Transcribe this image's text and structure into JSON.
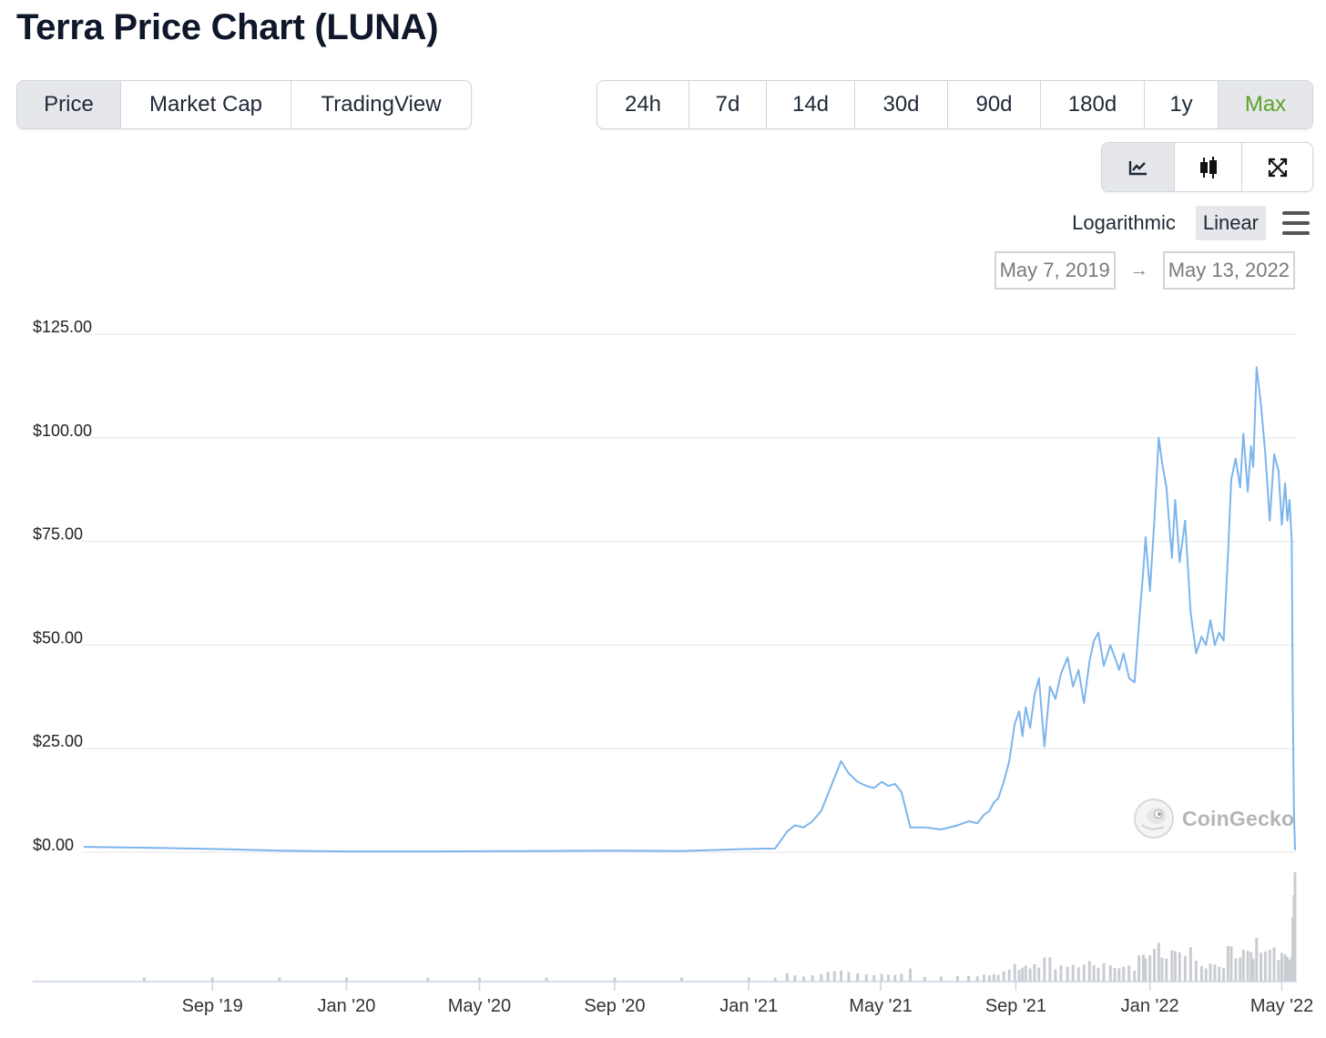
{
  "header": {
    "title": "Terra Price Chart (LUNA)"
  },
  "type_tabs": [
    {
      "label": "Price",
      "active": true
    },
    {
      "label": "Market Cap",
      "active": false
    },
    {
      "label": "TradingView",
      "active": false
    }
  ],
  "range_tabs": [
    {
      "label": "24h",
      "active": false
    },
    {
      "label": "7d",
      "active": false
    },
    {
      "label": "14d",
      "active": false
    },
    {
      "label": "30d",
      "active": false
    },
    {
      "label": "90d",
      "active": false
    },
    {
      "label": "180d",
      "active": false
    },
    {
      "label": "1y",
      "active": false
    },
    {
      "label": "Max",
      "active": true
    }
  ],
  "view_tabs": [
    {
      "icon": "line-chart-icon",
      "active": true
    },
    {
      "icon": "candlestick-icon",
      "active": false
    },
    {
      "icon": "expand-icon",
      "active": false
    }
  ],
  "scale": {
    "logarithmic": "Logarithmic",
    "linear": "Linear",
    "active": "Linear"
  },
  "date_range": {
    "from": "May 7, 2019",
    "arrow": "→",
    "to": "May 13, 2022"
  },
  "watermark": {
    "text": "CoinGecko"
  },
  "colors": {
    "line": "#7cb5ec",
    "volume": "#c9ccd1",
    "accent_active": "#5ea227",
    "grid": "#e6e6e6"
  },
  "chart_data": {
    "type": "line",
    "title": "Terra Price Chart (LUNA)",
    "y_axis": {
      "ticks": [
        0,
        25,
        50,
        75,
        100,
        125
      ],
      "tick_labels": [
        "$0.00",
        "$25.00",
        "$50.00",
        "$75.00",
        "$100.00",
        "$125.00"
      ],
      "ylim": [
        0,
        125
      ]
    },
    "x_axis": {
      "range": [
        "2019-05-07",
        "2022-05-13"
      ],
      "ticks": [
        "2019-09-01",
        "2020-01-01",
        "2020-05-01",
        "2020-09-01",
        "2021-01-01",
        "2021-05-01",
        "2021-09-01",
        "2022-01-01",
        "2022-05-01"
      ],
      "tick_labels": [
        "Sep '19",
        "Jan '20",
        "May '20",
        "Sep '20",
        "Jan '21",
        "May '21",
        "Sep '21",
        "Jan '22",
        "May '22"
      ]
    },
    "grid": true,
    "series": [
      {
        "x": [
          "2019-05-07",
          "2019-07-01",
          "2019-09-01",
          "2019-11-01",
          "2020-01-01",
          "2020-03-15",
          "2020-05-01",
          "2020-07-01",
          "2020-09-01",
          "2020-11-01",
          "2021-01-01",
          "2021-01-25",
          "2021-02-05",
          "2021-02-12",
          "2021-02-20",
          "2021-02-28",
          "2021-03-08",
          "2021-03-14",
          "2021-03-20",
          "2021-03-26",
          "2021-04-02",
          "2021-04-10",
          "2021-04-18",
          "2021-04-25",
          "2021-05-02",
          "2021-05-08",
          "2021-05-14",
          "2021-05-20",
          "2021-05-28",
          "2021-06-10",
          "2021-06-25",
          "2021-07-10",
          "2021-07-20",
          "2021-07-28",
          "2021-08-03",
          "2021-08-08",
          "2021-08-12",
          "2021-08-16",
          "2021-08-21",
          "2021-08-26",
          "2021-08-31",
          "2021-09-04",
          "2021-09-07",
          "2021-09-10",
          "2021-09-14",
          "2021-09-18",
          "2021-09-22",
          "2021-09-27",
          "2021-10-02",
          "2021-10-07",
          "2021-10-12",
          "2021-10-18",
          "2021-10-23",
          "2021-10-28",
          "2021-11-02",
          "2021-11-07",
          "2021-11-11",
          "2021-11-15",
          "2021-11-20",
          "2021-11-26",
          "2021-11-30",
          "2021-12-04",
          "2021-12-08",
          "2021-12-13",
          "2021-12-18",
          "2021-12-22",
          "2021-12-26",
          "2021-12-28",
          "2022-01-01",
          "2022-01-05",
          "2022-01-09",
          "2022-01-12",
          "2022-01-16",
          "2022-01-21",
          "2022-01-24",
          "2022-01-28",
          "2022-02-02",
          "2022-02-07",
          "2022-02-12",
          "2022-02-17",
          "2022-02-21",
          "2022-02-25",
          "2022-03-01",
          "2022-03-05",
          "2022-03-09",
          "2022-03-13",
          "2022-03-16",
          "2022-03-20",
          "2022-03-24",
          "2022-03-27",
          "2022-03-31",
          "2022-04-03",
          "2022-04-05",
          "2022-04-08",
          "2022-04-12",
          "2022-04-16",
          "2022-04-20",
          "2022-04-24",
          "2022-04-28",
          "2022-05-01",
          "2022-05-04",
          "2022-05-06",
          "2022-05-08",
          "2022-05-10",
          "2022-05-11",
          "2022-05-12",
          "2022-05-13"
        ],
        "y": [
          1.3,
          1.1,
          0.8,
          0.4,
          0.2,
          0.2,
          0.25,
          0.3,
          0.4,
          0.3,
          0.8,
          0.9,
          5,
          6.5,
          6,
          7.5,
          10,
          14,
          18,
          22,
          19,
          17,
          16,
          15.5,
          17,
          16,
          16.5,
          14.5,
          6,
          6,
          5.5,
          6.5,
          7.5,
          7,
          9,
          10,
          12,
          13,
          17,
          22,
          31,
          34,
          28,
          35,
          30,
          38,
          42,
          25.5,
          40,
          37,
          43,
          47,
          40,
          44,
          36,
          46,
          51,
          53,
          45,
          50,
          47,
          44,
          48,
          42,
          41,
          55,
          68,
          76,
          63,
          80,
          100,
          94,
          88,
          71,
          85,
          70,
          80,
          58,
          48,
          52,
          50,
          56,
          50,
          53,
          51,
          72,
          90,
          95,
          88,
          101,
          87,
          98,
          93,
          117,
          108,
          96,
          80,
          96,
          92,
          79,
          89,
          80,
          85,
          75,
          35,
          10,
          0.5
        ]
      }
    ],
    "volume_series_note": "Volume bars shown at bottom without labeled scale"
  }
}
